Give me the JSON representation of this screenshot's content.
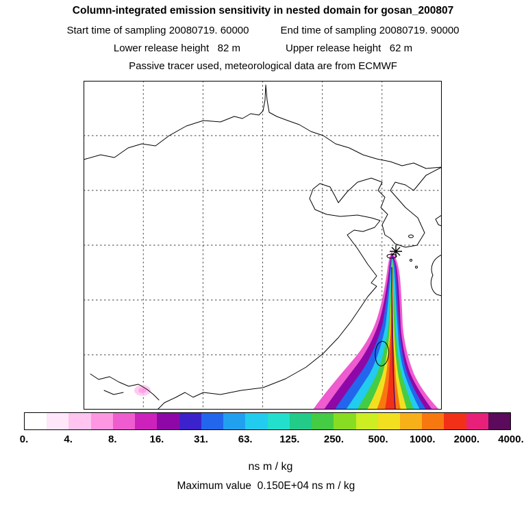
{
  "header": {
    "title": "Column-integrated emission sensitivity in nested domain for gosan_200807",
    "line2_left": "Start time of sampling 20080719. 60000",
    "line2_right": "End time of sampling 20080719. 90000",
    "line3_left": "Lower release height   82 m",
    "line3_right": "Upper release height   62 m",
    "line4": "Passive tracer used, meteorological data are from ECMWF"
  },
  "colorbar": {
    "ticks": [
      "0.",
      "4.",
      "8.",
      "16.",
      "31.",
      "63.",
      "125.",
      "250.",
      "500.",
      "1000.",
      "2000.",
      "4000."
    ],
    "units": "ns m / kg"
  },
  "footer": {
    "max_value_line": "Maximum value  0.150E+04 ns m / kg"
  },
  "chart_data": {
    "type": "heatmap",
    "title": "Column-integrated emission sensitivity in nested domain for gosan_200807",
    "subtitle_lines": [
      "Start time of sampling 20080719. 60000   End time of sampling 20080719. 90000",
      "Lower release height 82 m   Upper release height 62 m",
      "Passive tracer used, meteorological data are from ECMWF"
    ],
    "units": "ns m / kg",
    "levels": [
      0,
      4,
      8,
      16,
      31,
      63,
      125,
      250,
      500,
      1000,
      2000,
      4000
    ],
    "palette": [
      "#ffffff",
      "#ffe6f9",
      "#ffc4ef",
      "#ff96e2",
      "#ee5cd0",
      "#cc22bb",
      "#8e08a8",
      "#3c22cc",
      "#2266ee",
      "#22a0f0",
      "#22ccee",
      "#22e0cc",
      "#22cc88",
      "#44cc44",
      "#88dd22",
      "#ccee22",
      "#f2e020",
      "#f8b018",
      "#f87810",
      "#f23018",
      "#e8207a",
      "#5c0a5c"
    ],
    "maximum_value": "0.150E+04",
    "station": "gosan_200807",
    "sampling_start": "20080719. 60000",
    "sampling_end": "20080719. 90000",
    "lower_release_height_m": 82,
    "upper_release_height_m": 62,
    "meteorology": "ECMWF",
    "tracer": "Passive tracer",
    "receptor_marker": "star near Gosan (Jeju Strait), upper-right of plume",
    "plume_description": "Emission-sensitivity plume enters the nested domain at the southern boundary over the ocean and curves north-northeast to the receptor star; values increase from pink/magenta fringe (~4-16) through blue/cyan/green (~31-250) and yellow/orange (~500-1000) to a red core (~1500 ns m/kg) along the plume axis. A faint low-value patch (<8) appears near the southwest corner over land.",
    "map_extent_note": "East Asia: China coast, Bohai Sea, Shandong, Korean peninsula, Kyushu, Taiwan; dashed 6x6 graticule"
  }
}
